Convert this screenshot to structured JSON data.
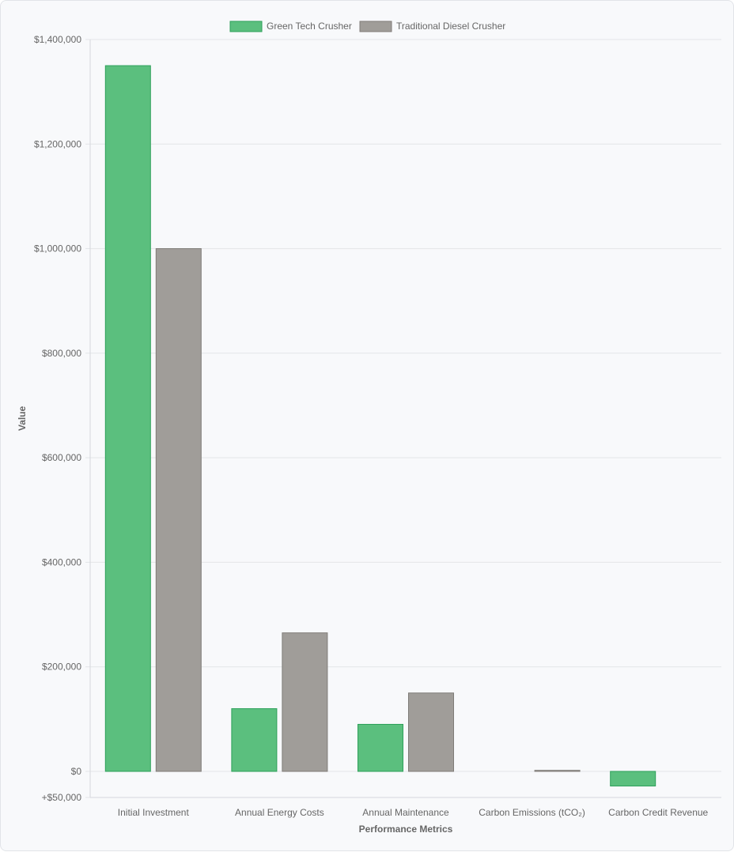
{
  "chart_data": {
    "type": "bar",
    "categories": [
      "Initial Investment",
      "Annual Energy Costs",
      "Annual Maintenance",
      "Carbon Emissions (tCO₂)",
      "Carbon Credit Revenue"
    ],
    "series": [
      {
        "name": "Green Tech Crusher",
        "values": [
          1350000,
          120000,
          90000,
          0,
          -28000
        ],
        "color": "#5bbf7e",
        "border": "#2ea05a"
      },
      {
        "name": "Traditional Diesel Crusher",
        "values": [
          1000000,
          265000,
          150000,
          2000,
          0
        ],
        "color": "#a09d99",
        "border": "#7f7c78"
      }
    ],
    "xlabel": "Performance Metrics",
    "ylabel": "Value",
    "ylim": [
      -50000,
      1400000
    ],
    "yticks": [
      {
        "value": 1400000,
        "label": "$1,400,000"
      },
      {
        "value": 1200000,
        "label": "$1,200,000"
      },
      {
        "value": 1000000,
        "label": "$1,000,000"
      },
      {
        "value": 800000,
        "label": "$800,000"
      },
      {
        "value": 600000,
        "label": "$600,000"
      },
      {
        "value": 400000,
        "label": "$400,000"
      },
      {
        "value": 200000,
        "label": "$200,000"
      },
      {
        "value": 0,
        "label": "$0"
      },
      {
        "value": -50000,
        "label": "+$50,000"
      }
    ],
    "legend": "top-center",
    "grid": true
  }
}
